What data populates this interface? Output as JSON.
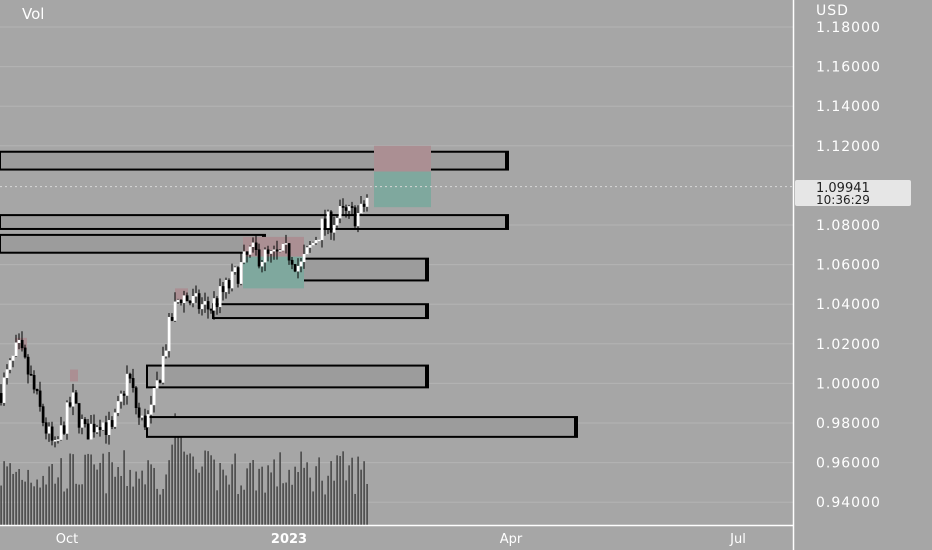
{
  "header": {
    "indicator_label": "Vol",
    "currency_label": "USD"
  },
  "price_axis": {
    "ticks": [
      "1.18000",
      "1.16000",
      "1.14000",
      "1.12000",
      "1.08000",
      "1.06000",
      "1.04000",
      "1.02000",
      "1.00000",
      "0.98000",
      "0.96000",
      "0.94000"
    ],
    "current_price": "1.09941",
    "countdown": "10:36:29"
  },
  "time_axis": {
    "ticks": [
      {
        "label": "Oct",
        "bold": false
      },
      {
        "label": "2023",
        "bold": true
      },
      {
        "label": "Apr",
        "bold": false
      },
      {
        "label": "Jul",
        "bold": false
      }
    ]
  },
  "colors": {
    "background": "#a6a6a6",
    "grid": "#b4b4b4",
    "zone_fill": "#9c9c9c",
    "zone_border": "#000000",
    "candle_up": "#ffffff",
    "candle_down": "#000000",
    "stop_zone": "#ab8f93",
    "target_zone": "#7fa89e",
    "volume_bar": "#3c3c3c",
    "text": "#ffffff"
  },
  "chart_data": {
    "type": "candlestick",
    "symbol_currency": "USD",
    "ylim": [
      0.93,
      1.19
    ],
    "current_price": 1.09941,
    "supply_demand_zones": [
      {
        "top": 1.117,
        "bottom": 1.108
      },
      {
        "top": 1.085,
        "bottom": 1.078
      },
      {
        "top": 1.075,
        "bottom": 1.066
      },
      {
        "top": 1.063,
        "bottom": 1.052
      },
      {
        "top": 1.04,
        "bottom": 1.033
      },
      {
        "top": 1.009,
        "bottom": 0.998
      },
      {
        "top": 0.983,
        "bottom": 0.973
      }
    ],
    "trade_boxes": [
      {
        "kind": "stop",
        "top": 1.12,
        "bottom": 1.107
      },
      {
        "kind": "target",
        "top": 1.107,
        "bottom": 1.089
      },
      {
        "kind": "stop",
        "top": 1.074,
        "bottom": 1.064
      },
      {
        "kind": "target",
        "top": 1.064,
        "bottom": 1.048
      },
      {
        "kind": "stop",
        "top": 1.048,
        "bottom": 1.042
      },
      {
        "kind": "stop",
        "top": 1.023,
        "bottom": 1.017
      },
      {
        "kind": "stop",
        "top": 1.007,
        "bottom": 1.001
      }
    ]
  }
}
